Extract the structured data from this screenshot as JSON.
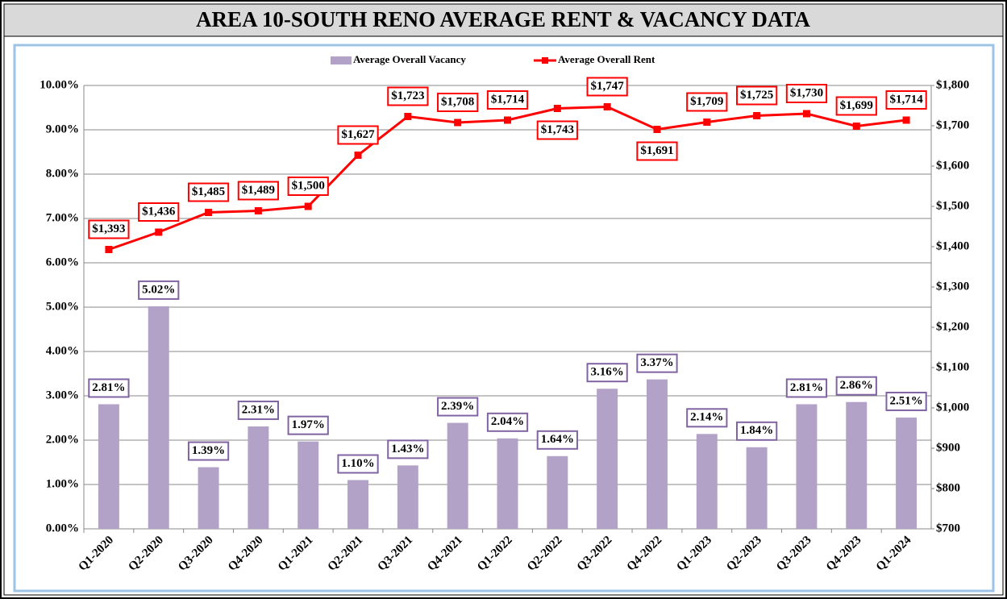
{
  "chart_data": {
    "type": "bar_line",
    "title": "AREA 10-SOUTH RENO AVERAGE RENT & VACANCY DATA",
    "categories": [
      "Q1-2020",
      "Q2-2020",
      "Q3-2020",
      "Q4-2020",
      "Q1-2021",
      "Q2-2021",
      "Q3-2021",
      "Q4-2021",
      "Q1-2022",
      "Q2-2022",
      "Q3-2022",
      "Q4-2022",
      "Q1-2023",
      "Q2-2023",
      "Q3-2023",
      "Q4-2023",
      "Q1-2024"
    ],
    "series": [
      {
        "name": "Average Overall Vacancy",
        "type": "bar",
        "color": "#b3a2c7",
        "axis": "y",
        "values": [
          2.81,
          5.02,
          1.39,
          2.31,
          1.97,
          1.1,
          1.43,
          2.39,
          2.04,
          1.64,
          3.16,
          3.37,
          2.14,
          1.84,
          2.81,
          2.86,
          2.51
        ],
        "value_labels": [
          "2.81%",
          "5.02%",
          "1.39%",
          "2.31%",
          "1.97%",
          "1.10%",
          "1.43%",
          "2.39%",
          "2.04%",
          "1.64%",
          "3.16%",
          "3.37%",
          "2.14%",
          "1.84%",
          "2.81%",
          "2.86%",
          "2.51%"
        ]
      },
      {
        "name": "Average Overall Rent",
        "type": "line",
        "color": "#ff0000",
        "axis": "y2",
        "values": [
          1393,
          1436,
          1485,
          1489,
          1500,
          1627,
          1723,
          1708,
          1714,
          1743,
          1747,
          1691,
          1709,
          1725,
          1730,
          1699,
          1714
        ],
        "value_labels": [
          "$1,393",
          "$1,436",
          "$1,485",
          "$1,489",
          "$1,500",
          "$1,627",
          "$1,723",
          "$1,708",
          "$1,714",
          "$1,743",
          "$1,747",
          "$1,691",
          "$1,709",
          "$1,725",
          "$1,730",
          "$1,699",
          "$1,714"
        ]
      }
    ],
    "ylim": [
      0,
      10
    ],
    "yticks": [
      {
        "value": 0,
        "label": "0.00%"
      },
      {
        "value": 1,
        "label": "1.00%"
      },
      {
        "value": 2,
        "label": "2.00%"
      },
      {
        "value": 3,
        "label": "3.00%"
      },
      {
        "value": 4,
        "label": "4.00%"
      },
      {
        "value": 5,
        "label": "5.00%"
      },
      {
        "value": 6,
        "label": "6.00%"
      },
      {
        "value": 7,
        "label": "7.00%"
      },
      {
        "value": 8,
        "label": "8.00%"
      },
      {
        "value": 9,
        "label": "9.00%"
      },
      {
        "value": 10,
        "label": "10.00%"
      }
    ],
    "y2lim": [
      700,
      1800
    ],
    "y2ticks": [
      {
        "value": 700,
        "label": "$700"
      },
      {
        "value": 800,
        "label": "$800"
      },
      {
        "value": 900,
        "label": "$900"
      },
      {
        "value": 1000,
        "label": "$1,000"
      },
      {
        "value": 1100,
        "label": "$1,100"
      },
      {
        "value": 1200,
        "label": "$1,200"
      },
      {
        "value": 1300,
        "label": "$1,300"
      },
      {
        "value": 1400,
        "label": "$1,400"
      },
      {
        "value": 1500,
        "label": "$1,500"
      },
      {
        "value": 1600,
        "label": "$1,600"
      },
      {
        "value": 1700,
        "label": "$1,700"
      },
      {
        "value": 1800,
        "label": "$1,800"
      }
    ],
    "grid": true,
    "legend": "top"
  }
}
